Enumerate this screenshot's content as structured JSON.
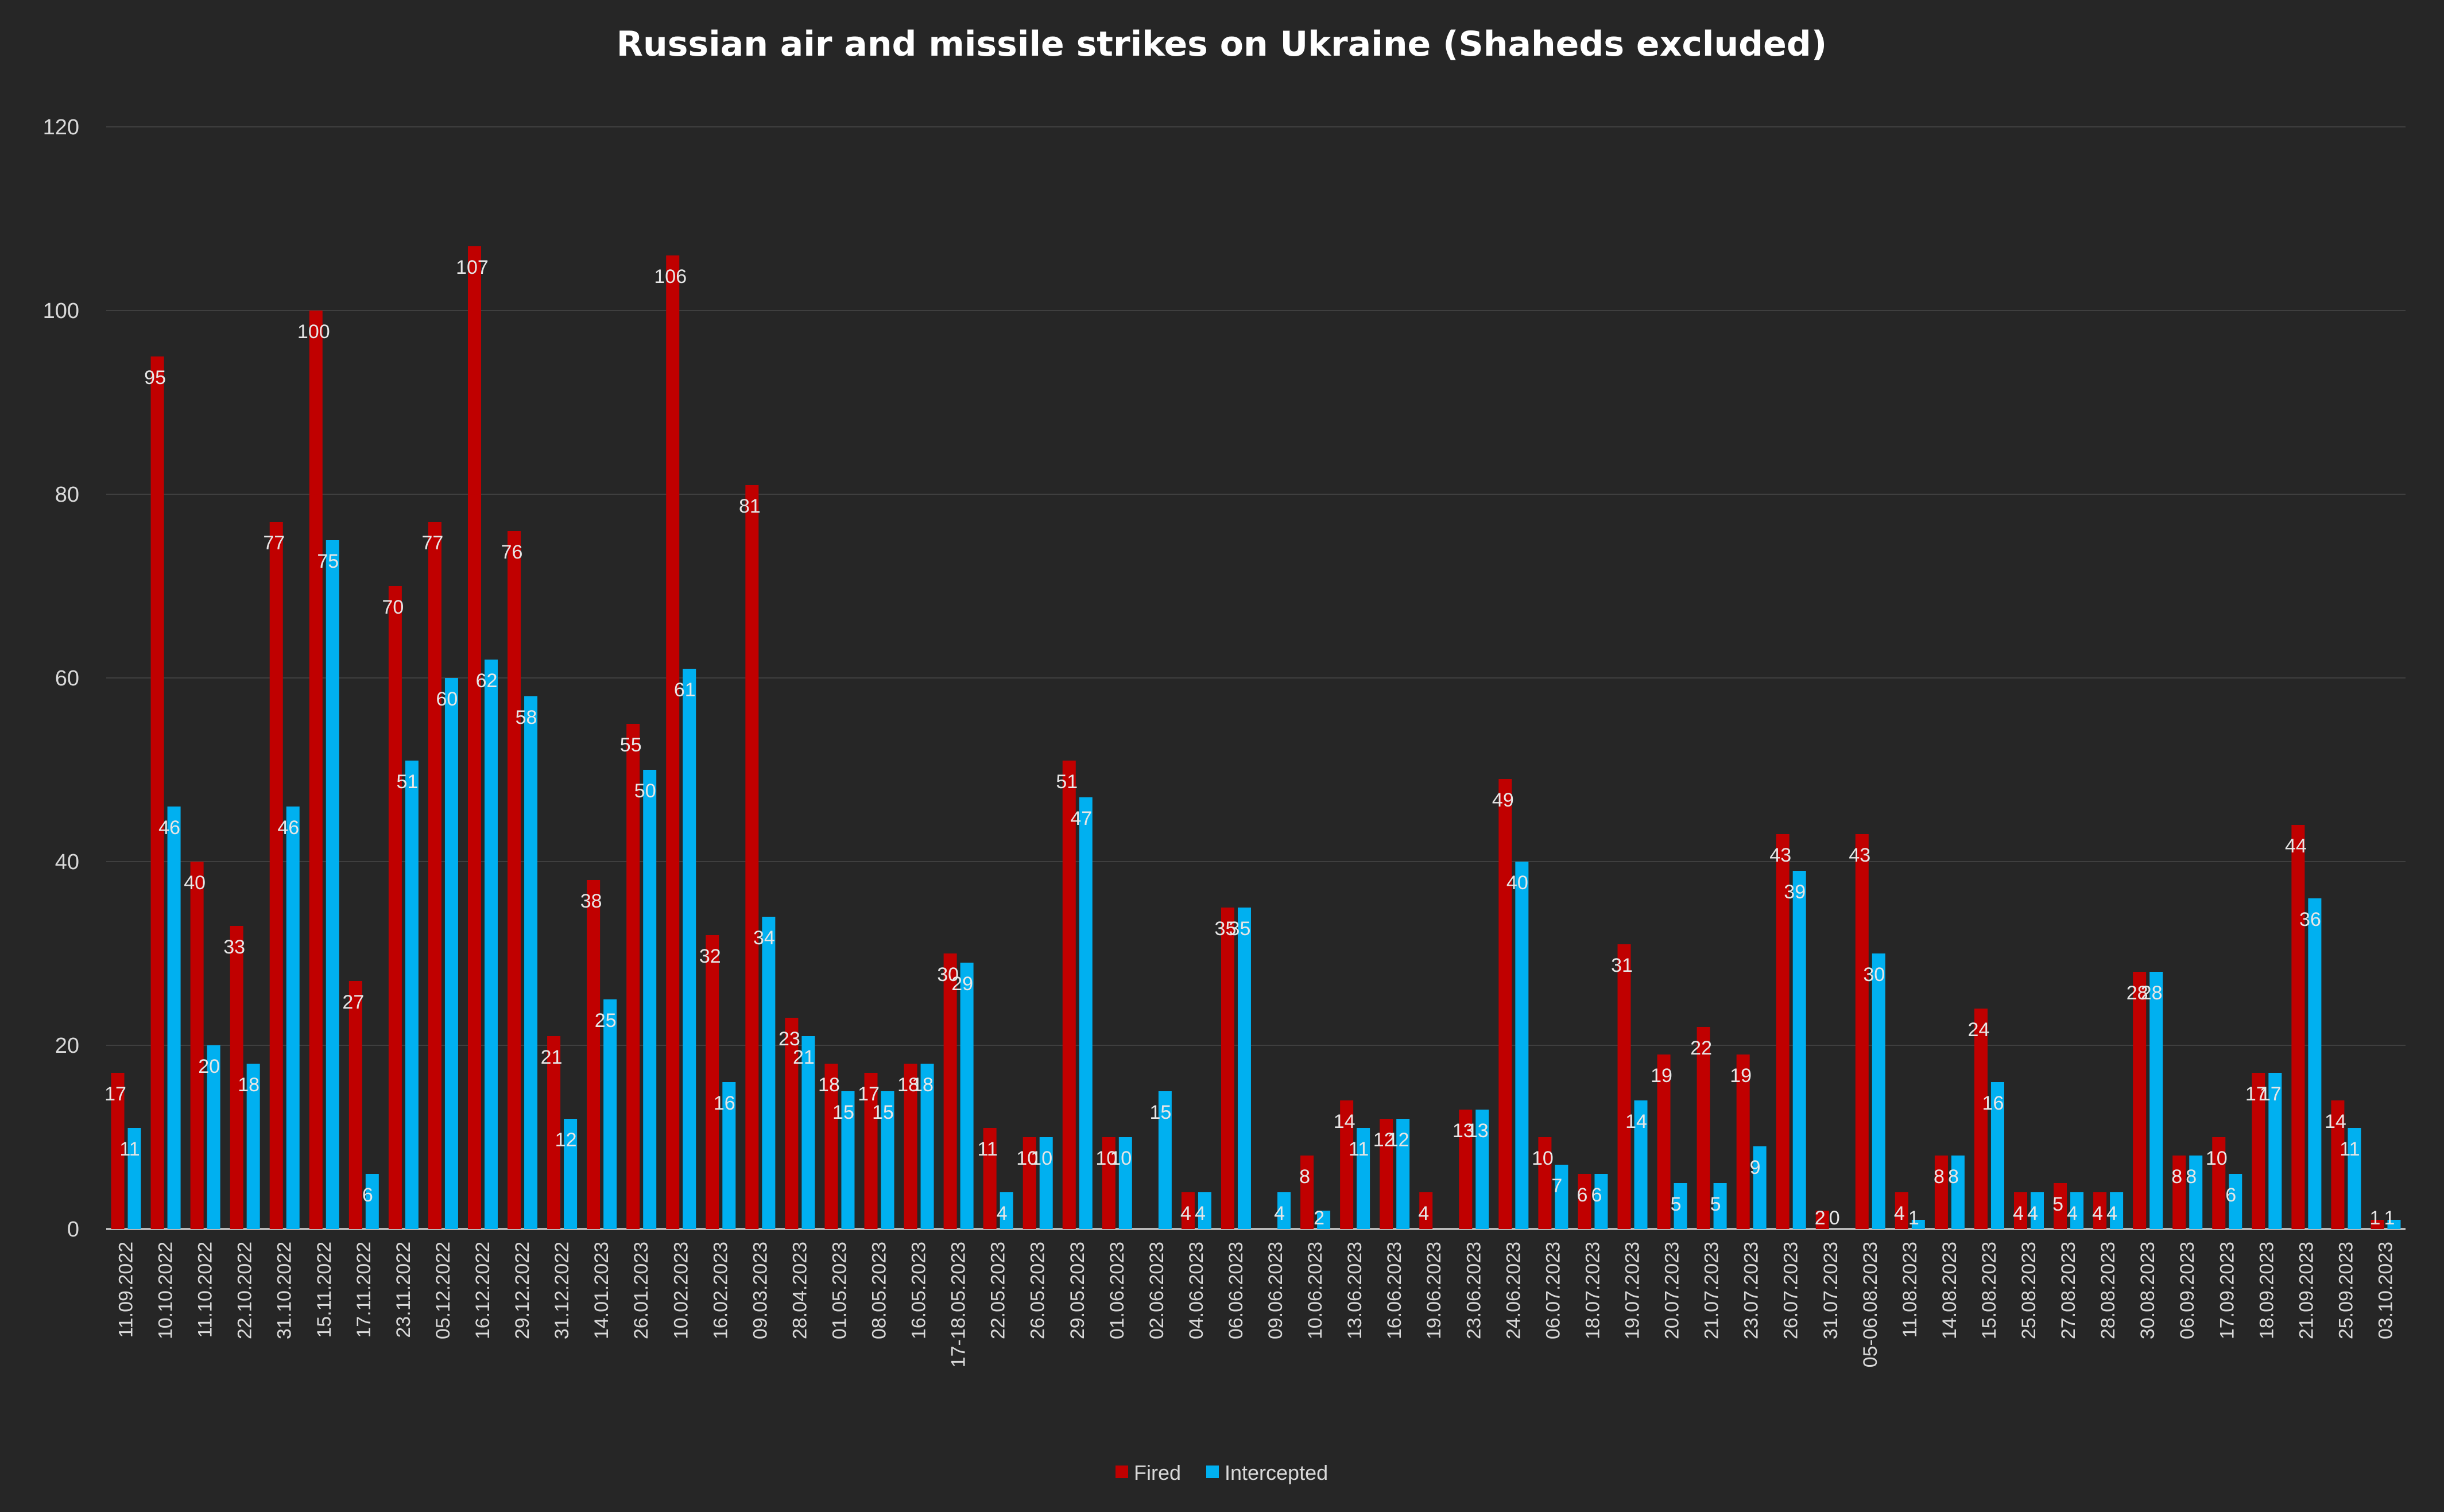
{
  "chart_data": {
    "type": "bar",
    "title": "Russian air and missile strikes on Ukraine (Shaheds excluded)",
    "xlabel": "",
    "ylabel": "",
    "ylim": [
      0,
      120
    ],
    "yticks": [
      0,
      20,
      40,
      60,
      80,
      100,
      120
    ],
    "grid": true,
    "legend_position": "bottom",
    "categories": [
      "11.09.2022",
      "10.10.2022",
      "11.10.2022",
      "22.10.2022",
      "31.10.2022",
      "15.11.2022",
      "17.11.2022",
      "23.11.2022",
      "05.12.2022",
      "16.12.2022",
      "29.12.2022",
      "31.12.2022",
      "14.01.2023",
      "26.01.2023",
      "10.02.2023",
      "16.02.2023",
      "09.03.2023",
      "28.04.2023",
      "01.05.2023",
      "08.05.2023",
      "16.05.2023",
      "17-18.05.2023",
      "22.05.2023",
      "26.05.2023",
      "29.05.2023",
      "01.06.2023",
      "02.06.2023",
      "04.06.2023",
      "06.06.2023",
      "09.06.2023",
      "10.06.2023",
      "13.06.2023",
      "16.06.2023",
      "19.06.2023",
      "23.06.2023",
      "24.06.2023",
      "06.07.2023",
      "18.07.2023",
      "19.07.2023",
      "20.07.2023",
      "21.07.2023",
      "23.07.2023",
      "26.07.2023",
      "31.07.2023",
      "05-06.08.2023",
      "11.08.2023",
      "14.08.2023",
      "15.08.2023",
      "25.08.2023",
      "27.08.2023",
      "28.08.2023",
      "30.08.2023",
      "06.09.2023",
      "17.09.2023",
      "18.09.2023",
      "21.09.2023",
      "25.09.2023",
      "03.10.2023"
    ],
    "series": [
      {
        "name": "Fired",
        "color": "#c00000",
        "values": [
          17,
          95,
          40,
          33,
          77,
          100,
          27,
          70,
          77,
          107,
          76,
          21,
          38,
          55,
          106,
          32,
          81,
          23,
          18,
          17,
          18,
          30,
          11,
          10,
          51,
          10,
          null,
          4,
          35,
          null,
          8,
          14,
          12,
          4,
          13,
          49,
          10,
          6,
          31,
          19,
          22,
          19,
          43,
          2,
          43,
          4,
          8,
          24,
          4,
          5,
          4,
          28,
          8,
          10,
          17,
          44,
          14,
          1
        ]
      },
      {
        "name": "Intercepted",
        "color": "#00b0f0",
        "values": [
          11,
          46,
          20,
          18,
          46,
          75,
          6,
          51,
          60,
          62,
          58,
          12,
          25,
          50,
          61,
          16,
          34,
          21,
          15,
          15,
          18,
          29,
          4,
          10,
          47,
          10,
          15,
          4,
          35,
          4,
          2,
          11,
          12,
          null,
          13,
          40,
          7,
          6,
          14,
          5,
          5,
          9,
          39,
          0,
          30,
          1,
          8,
          16,
          4,
          4,
          4,
          28,
          8,
          6,
          17,
          36,
          11,
          1
        ]
      }
    ]
  }
}
